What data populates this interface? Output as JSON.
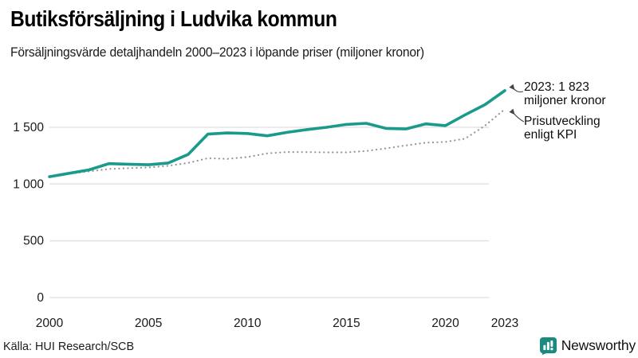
{
  "page": {
    "title": "Butiksförsäljning i Ludvika kommun",
    "subtitle": "Försäljningsvärde detaljhandeln 2000–2023 i löpande priser (miljoner kronor)",
    "source": "Källa: HUI Research/SCB",
    "brand": "Newsworthy"
  },
  "colors": {
    "line": "#1a9a8a",
    "kpi_dots": "#949494",
    "grid": "#e3e3e9",
    "axis_text": "#1a1a1a",
    "arrow": "#444444",
    "brand_teal": "#1d8a80"
  },
  "annotations": {
    "value_2023_line1": "2023: 1 823",
    "value_2023_line2": "miljoner kronor",
    "kpi_line1": "Prisutveckling",
    "kpi_line2": "enligt KPI"
  },
  "chart_data": {
    "type": "line",
    "title": "Butiksförsäljning i Ludvika kommun",
    "subtitle": "Försäljningsvärde detaljhandeln 2000–2023 i löpande priser (miljoner kronor)",
    "unit": "miljoner kronor",
    "source": "HUI Research/SCB",
    "x": [
      2000,
      2001,
      2002,
      2003,
      2004,
      2005,
      2006,
      2007,
      2008,
      2009,
      2010,
      2011,
      2012,
      2013,
      2014,
      2015,
      2016,
      2017,
      2018,
      2019,
      2020,
      2021,
      2022,
      2023
    ],
    "series": [
      {
        "name": "Försäljningsvärde i löpande priser",
        "style": "solid",
        "values": [
          1065,
          1095,
          1125,
          1180,
          1175,
          1170,
          1185,
          1260,
          1440,
          1450,
          1445,
          1425,
          1455,
          1480,
          1500,
          1525,
          1535,
          1490,
          1485,
          1530,
          1515,
          1610,
          1700,
          1823
        ]
      },
      {
        "name": "Prisutveckling enligt KPI",
        "style": "dotted",
        "values": [
          1065,
          1090,
          1112,
          1133,
          1140,
          1146,
          1161,
          1186,
          1227,
          1222,
          1238,
          1270,
          1282,
          1281,
          1279,
          1279,
          1291,
          1314,
          1340,
          1364,
          1371,
          1400,
          1515,
          1660
        ]
      }
    ],
    "highlight_point": {
      "x": 2023,
      "value": 1823
    },
    "xticks": [
      {
        "value": 2000,
        "label": "2000"
      },
      {
        "value": 2005,
        "label": "2005"
      },
      {
        "value": 2010,
        "label": "2010"
      },
      {
        "value": 2015,
        "label": "2015"
      },
      {
        "value": 2020,
        "label": "2020"
      },
      {
        "value": 2023,
        "label": "2023"
      }
    ],
    "yticks": [
      {
        "value": 0,
        "label": "0"
      },
      {
        "value": 500,
        "label": "500"
      },
      {
        "value": 1000,
        "label": "1 000"
      },
      {
        "value": 1500,
        "label": "1 500"
      }
    ],
    "xlim": [
      2000,
      2023
    ],
    "ylim": [
      0,
      1900
    ],
    "grid": "horizontal",
    "legend": "annotated-inline"
  }
}
